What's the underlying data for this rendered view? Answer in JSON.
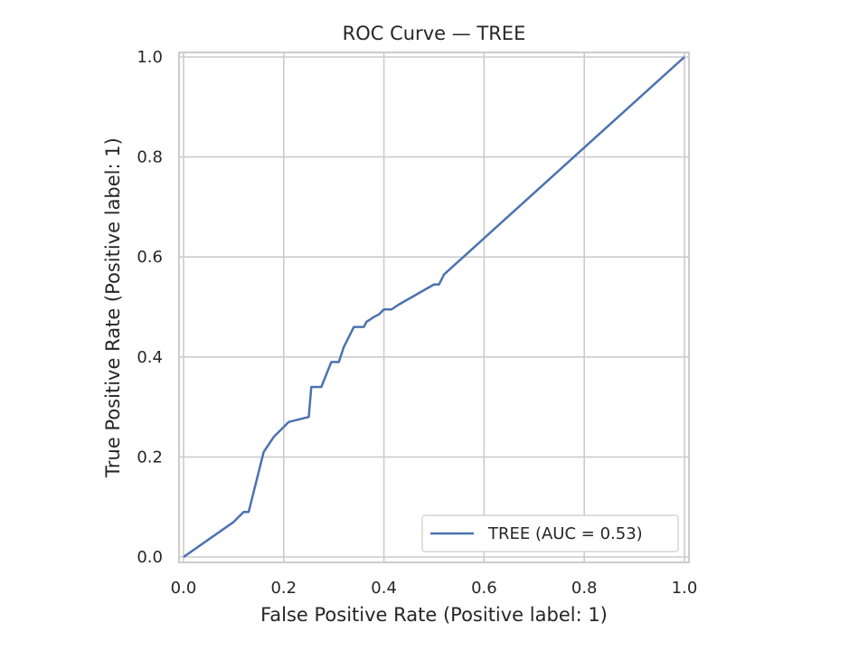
{
  "chart_data": {
    "type": "line",
    "title": "ROC Curve — TREE",
    "xlabel": "False Positive Rate (Positive label: 1)",
    "ylabel": "True Positive Rate (Positive label: 1)",
    "xlim": [
      0,
      1
    ],
    "ylim": [
      0,
      1
    ],
    "xticks": [
      "0.0",
      "0.2",
      "0.4",
      "0.6",
      "0.8",
      "1.0"
    ],
    "yticks": [
      "0.0",
      "0.2",
      "0.4",
      "0.6",
      "0.8",
      "1.0"
    ],
    "grid": true,
    "legend_position": "lower-right",
    "series": [
      {
        "name": "TREE (AUC = 0.53)",
        "color": "#4c72b0",
        "x": [
          0.0,
          0.1,
          0.12,
          0.13,
          0.15,
          0.16,
          0.18,
          0.2,
          0.21,
          0.25,
          0.255,
          0.275,
          0.295,
          0.31,
          0.32,
          0.34,
          0.36,
          0.365,
          0.38,
          0.39,
          0.4,
          0.415,
          0.43,
          0.5,
          0.51,
          0.515,
          0.52,
          1.0
        ],
        "y": [
          0.0,
          0.07,
          0.09,
          0.09,
          0.17,
          0.21,
          0.24,
          0.26,
          0.27,
          0.28,
          0.34,
          0.34,
          0.39,
          0.39,
          0.42,
          0.46,
          0.46,
          0.47,
          0.48,
          0.485,
          0.495,
          0.495,
          0.505,
          0.545,
          0.545,
          0.555,
          0.565,
          1.0
        ]
      }
    ]
  }
}
